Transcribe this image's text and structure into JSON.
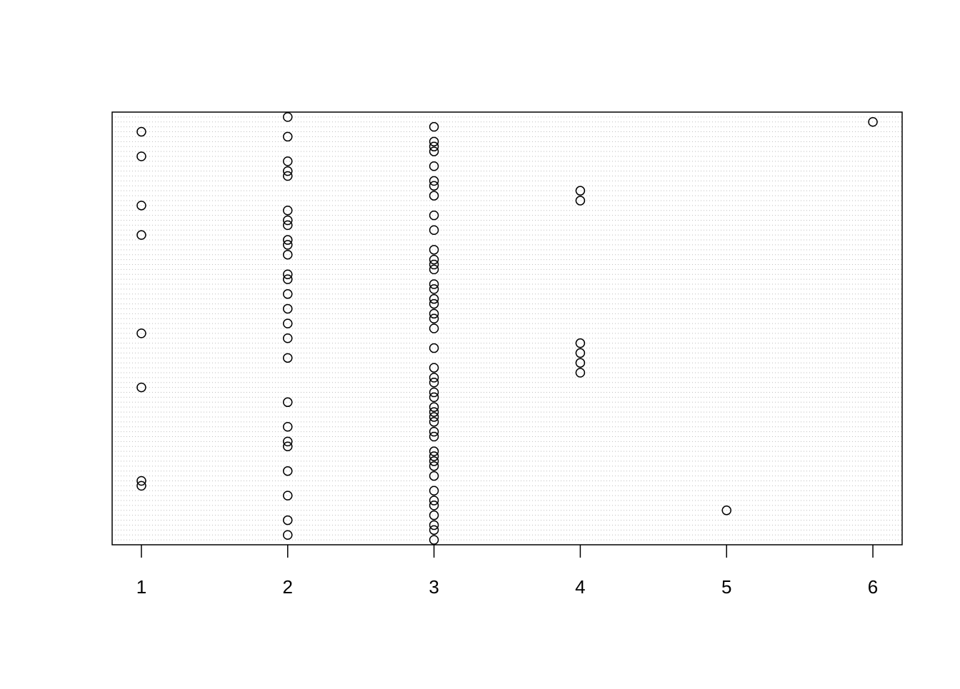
{
  "chart_data": {
    "type": "dot",
    "values": [
      3,
      2,
      3,
      3,
      2,
      3,
      5,
      3,
      3,
      2,
      3,
      1,
      1,
      3,
      2,
      3,
      3,
      3,
      3,
      2,
      2,
      3,
      3,
      2,
      3,
      3,
      3,
      3,
      2,
      3,
      3,
      1,
      3,
      3,
      4,
      3,
      4,
      2,
      4,
      3,
      4,
      2,
      1,
      3,
      2,
      3,
      3,
      2,
      3,
      3,
      2,
      3,
      3,
      2,
      2,
      3,
      3,
      3,
      2,
      3,
      2,
      2,
      1,
      3,
      2,
      2,
      3,
      2,
      1,
      4,
      3,
      4,
      3,
      3,
      2,
      2,
      3,
      2,
      1,
      3,
      3,
      3,
      2,
      1,
      3,
      6,
      2
    ],
    "xlim": [
      0.8,
      6.2
    ],
    "xticks": [
      1,
      2,
      3,
      4,
      5,
      6
    ],
    "grid": true,
    "color": "#000000"
  }
}
